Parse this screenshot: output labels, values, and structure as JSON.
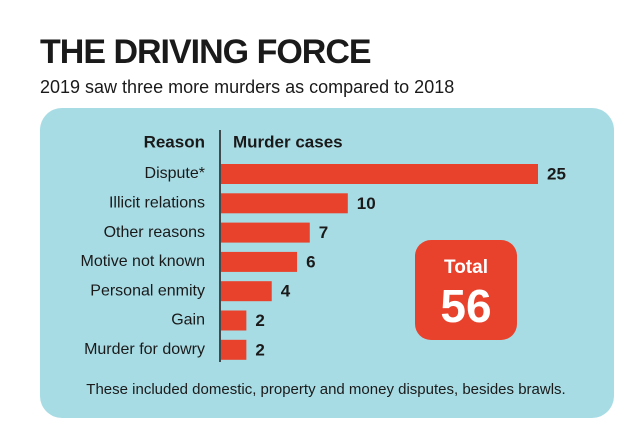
{
  "chart_data": {
    "type": "bar",
    "title": "THE DRIVING FORCE",
    "subtitle": "2019 saw three more murders as compared to 2018",
    "category_header": "Reason",
    "value_header": "Murder cases",
    "categories": [
      "Dispute*",
      "Illicit relations",
      "Other reasons",
      "Motive not known",
      "Personal enmity",
      "Gain",
      "Murder for dowry"
    ],
    "values": [
      25,
      10,
      7,
      6,
      4,
      2,
      2
    ],
    "color": "#e8422c",
    "total_label": "Total",
    "total": 56,
    "note": "These included domestic, property and money disputes, besides brawls."
  }
}
